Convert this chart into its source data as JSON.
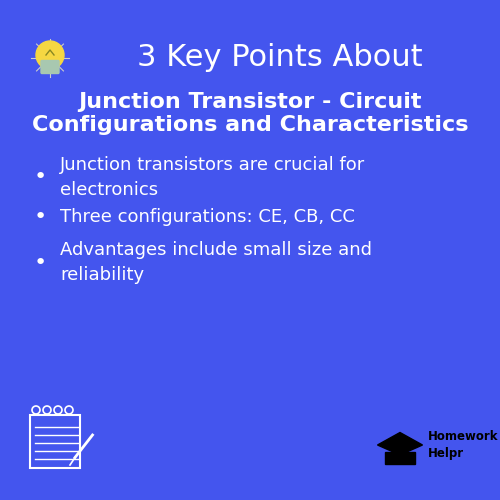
{
  "bg_color": "#4455ee",
  "title_line1": "3 Key Points About",
  "subtitle_line1": "Junction Transistor - Circuit",
  "subtitle_line2": "Configurations and Characteristics",
  "bullet_points": [
    "Junction transistors are crucial for\nelectronics",
    "Three configurations: CE, CB, CC",
    "Advantages include small size and\nreliability"
  ],
  "title_color": "#ffffff",
  "subtitle_color": "#ffffff",
  "bullet_color": "#ffffff",
  "title_fontsize": 22,
  "subtitle_fontsize": 16,
  "bullet_fontsize": 13,
  "bulb_color": "#f5d742",
  "bulb_base_color": "#a8c8b0",
  "brand_text": "Homework\nHelpr",
  "brand_color": "#000000"
}
